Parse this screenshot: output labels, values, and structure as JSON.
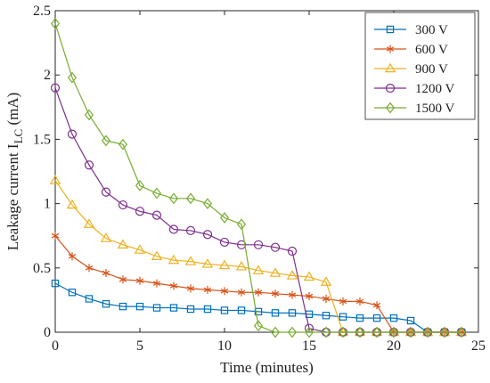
{
  "chart_data": {
    "type": "line",
    "xlabel": "Time (minutes)",
    "ylabel_main": "Leakage current I",
    "ylabel_sub": "LC",
    "ylabel_unit": " (mA)",
    "xlim": [
      0,
      25
    ],
    "ylim": [
      0,
      2.5
    ],
    "xticks": [
      "0",
      "5",
      "10",
      "15",
      "20",
      "25"
    ],
    "yticks": [
      "0",
      "0.5",
      "1",
      "1.5",
      "2",
      "2.5"
    ],
    "grid": false,
    "legend_position": "top-right",
    "x": [
      0,
      1,
      2,
      3,
      4,
      5,
      6,
      7,
      8,
      9,
      10,
      11,
      12,
      13,
      14,
      15,
      16,
      17,
      18,
      19,
      20,
      21,
      22,
      23,
      24
    ],
    "series": [
      {
        "name": "300 V",
        "color": "#0072BD",
        "marker": "square",
        "values": [
          0.38,
          0.31,
          0.26,
          0.22,
          0.2,
          0.2,
          0.19,
          0.19,
          0.18,
          0.18,
          0.17,
          0.17,
          0.16,
          0.15,
          0.15,
          0.14,
          0.13,
          0.12,
          0.11,
          0.11,
          0.11,
          0.09,
          0,
          0,
          0
        ]
      },
      {
        "name": "600 V",
        "color": "#D95319",
        "marker": "asterisk",
        "values": [
          0.75,
          0.59,
          0.5,
          0.46,
          0.41,
          0.4,
          0.38,
          0.36,
          0.34,
          0.33,
          0.32,
          0.31,
          0.31,
          0.3,
          0.29,
          0.28,
          0.26,
          0.24,
          0.24,
          0.21,
          0,
          0,
          0,
          0,
          0
        ]
      },
      {
        "name": "900 V",
        "color": "#EDB120",
        "marker": "triangle",
        "values": [
          1.18,
          0.99,
          0.84,
          0.73,
          0.68,
          0.64,
          0.59,
          0.56,
          0.55,
          0.53,
          0.52,
          0.51,
          0.48,
          0.46,
          0.44,
          0.43,
          0.39,
          0,
          0,
          0,
          0,
          0,
          0,
          0,
          0
        ]
      },
      {
        "name": "1200 V",
        "color": "#7E2F8E",
        "marker": "circle",
        "values": [
          1.9,
          1.54,
          1.3,
          1.09,
          0.99,
          0.94,
          0.91,
          0.8,
          0.79,
          0.76,
          0.7,
          0.68,
          0.68,
          0.66,
          0.63,
          0.03,
          0,
          0,
          0,
          0,
          0,
          0,
          0,
          0,
          0
        ]
      },
      {
        "name": "1500 V",
        "color": "#77AC30",
        "marker": "diamond",
        "values": [
          2.4,
          1.98,
          1.69,
          1.49,
          1.46,
          1.14,
          1.08,
          1.04,
          1.04,
          1.0,
          0.89,
          0.84,
          0.05,
          0,
          0,
          0,
          0,
          0,
          0,
          0,
          0,
          0,
          0,
          0,
          0
        ]
      }
    ]
  }
}
